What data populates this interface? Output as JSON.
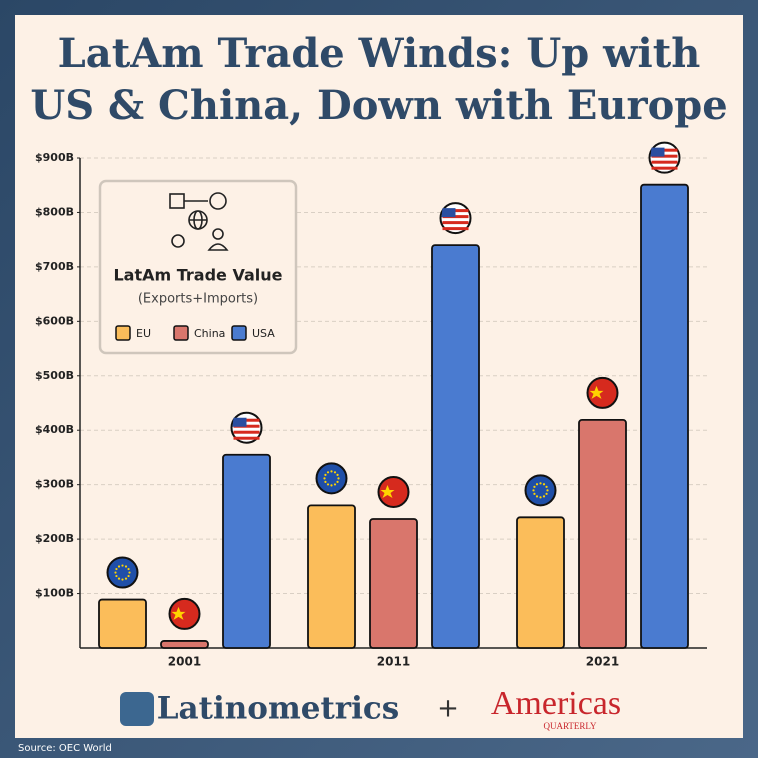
{
  "chart_data": {
    "type": "bar",
    "title": "LatAm Trade Winds: Up with\nUS & China, Down with Europe",
    "legend_title": "LatAm Trade Value",
    "legend_subtitle": "(Exports+Imports)",
    "categories": [
      "2001",
      "2011",
      "2021"
    ],
    "series": [
      {
        "name": "EU",
        "color": "#fbbd5a",
        "values": [
          89,
          262,
          240
        ]
      },
      {
        "name": "China",
        "color": "#d9766c",
        "values": [
          13,
          237,
          419
        ]
      },
      {
        "name": "USA",
        "color": "#4a7bd0",
        "values": [
          355,
          740,
          851
        ]
      }
    ],
    "ylim": [
      0,
      900
    ],
    "yticks": [
      {
        "value": 100,
        "label": "$100B"
      },
      {
        "value": 200,
        "label": "$200B"
      },
      {
        "value": 300,
        "label": "$300B"
      },
      {
        "value": 400,
        "label": "$400B"
      },
      {
        "value": 500,
        "label": "$500B"
      },
      {
        "value": 600,
        "label": "$600B"
      },
      {
        "value": 700,
        "label": "$700B"
      },
      {
        "value": 800,
        "label": "$800B"
      },
      {
        "value": 900,
        "label": "$900B"
      }
    ],
    "grid": true
  },
  "footer": {
    "brand": "Latinometrics",
    "plus": "+",
    "partner": "Americas",
    "partner_sub": "QUARTERLY",
    "source": "Source: OEC World"
  }
}
